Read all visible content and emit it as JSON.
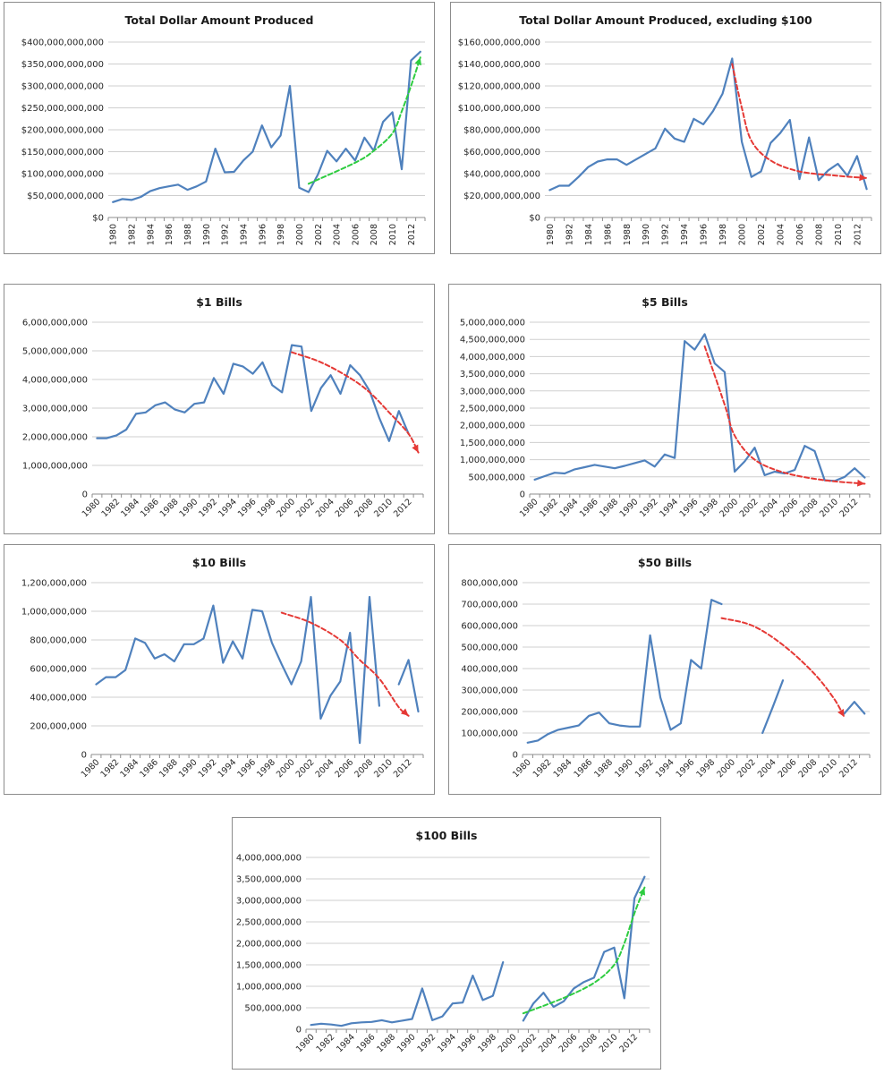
{
  "chart_data": [
    {
      "type": "line",
      "title": "Total Dollar Amount Produced",
      "x": [
        1980,
        1981,
        1982,
        1983,
        1984,
        1985,
        1986,
        1987,
        1988,
        1989,
        1990,
        1991,
        1992,
        1993,
        1994,
        1995,
        1996,
        1997,
        1998,
        1999,
        2000,
        2001,
        2002,
        2003,
        2004,
        2005,
        2006,
        2007,
        2008,
        2009,
        2010,
        2011,
        2012,
        2013
      ],
      "xticks": [
        1980,
        1982,
        1984,
        1986,
        1988,
        1990,
        1992,
        1994,
        1996,
        1998,
        2000,
        2002,
        2004,
        2006,
        2008,
        2010,
        2012
      ],
      "xtick_rotate": -90,
      "values": [
        35000000000,
        42000000000,
        40000000000,
        47000000000,
        60000000000,
        67000000000,
        71000000000,
        75000000000,
        63000000000,
        71000000000,
        82000000000,
        157000000000,
        103000000000,
        104000000000,
        130000000000,
        150000000000,
        210000000000,
        160000000000,
        187000000000,
        300000000000,
        68000000000,
        58000000000,
        98000000000,
        152000000000,
        128000000000,
        157000000000,
        130000000000,
        182000000000,
        152000000000,
        218000000000,
        240000000000,
        110000000000,
        358000000000,
        378000000000
      ],
      "ylim": [
        0,
        400000000000
      ],
      "yticks": [
        0,
        50000000000,
        100000000000,
        150000000000,
        200000000000,
        250000000000,
        300000000000,
        350000000000,
        400000000000
      ],
      "ytick_labels": [
        "$0",
        "$50,000,000,000",
        "$100,000,000,000",
        "$150,000,000,000",
        "$200,000,000,000",
        "$250,000,000,000",
        "$300,000,000,000",
        "$350,000,000,000",
        "$400,000,000,000"
      ],
      "grid": true,
      "trend": {
        "color": "#2ecc40",
        "points": [
          [
            2001,
            77000000000
          ],
          [
            2006,
            125000000000
          ],
          [
            2008,
            152000000000
          ],
          [
            2010,
            192000000000
          ],
          [
            2011,
            242000000000
          ],
          [
            2012,
            300000000000
          ],
          [
            2013,
            365000000000
          ]
        ]
      }
    },
    {
      "type": "line",
      "title": "Total Dollar Amount Produced, excluding $100",
      "x": [
        1980,
        1981,
        1982,
        1983,
        1984,
        1985,
        1986,
        1987,
        1988,
        1989,
        1990,
        1991,
        1992,
        1993,
        1994,
        1995,
        1996,
        1997,
        1998,
        1999,
        2000,
        2001,
        2002,
        2003,
        2004,
        2005,
        2006,
        2007,
        2008,
        2009,
        2010,
        2011,
        2012,
        2013
      ],
      "xticks": [
        1980,
        1982,
        1984,
        1986,
        1988,
        1990,
        1992,
        1994,
        1996,
        1998,
        2000,
        2002,
        2004,
        2006,
        2008,
        2010,
        2012
      ],
      "xtick_rotate": -90,
      "values": [
        25000000000,
        29000000000,
        29000000000,
        37000000000,
        46000000000,
        51000000000,
        53000000000,
        53000000000,
        48000000000,
        53000000000,
        58000000000,
        63000000000,
        81000000000,
        72000000000,
        69000000000,
        90000000000,
        85000000000,
        97000000000,
        113000000000,
        145000000000,
        69000000000,
        37000000000,
        42000000000,
        68000000000,
        77000000000,
        89000000000,
        35000000000,
        73000000000,
        34000000000,
        43000000000,
        49000000000,
        38000000000,
        56000000000,
        26000000000
      ],
      "ylim": [
        0,
        160000000000
      ],
      "yticks": [
        0,
        20000000000,
        40000000000,
        60000000000,
        80000000000,
        100000000000,
        120000000000,
        140000000000,
        160000000000
      ],
      "ytick_labels": [
        "$0",
        "$20,000,000,000",
        "$40,000,000,000",
        "$60,000,000,000",
        "$80,000,000,000",
        "$100,000,000,000",
        "$120,000,000,000",
        "$140,000,000,000",
        "$160,000,000,000"
      ],
      "grid": true,
      "trend": {
        "color": "#e53935",
        "points": [
          [
            1999,
            140000000000
          ],
          [
            2000,
            100000000000
          ],
          [
            2001,
            70000000000
          ],
          [
            2003,
            52000000000
          ],
          [
            2006,
            42000000000
          ],
          [
            2010,
            38000000000
          ],
          [
            2013,
            36000000000
          ]
        ]
      }
    },
    {
      "type": "line",
      "title": "$1 Bills",
      "x": [
        1980,
        1981,
        1982,
        1983,
        1984,
        1985,
        1986,
        1987,
        1988,
        1989,
        1990,
        1991,
        1992,
        1993,
        1994,
        1995,
        1996,
        1997,
        1998,
        1999,
        2000,
        2001,
        2002,
        2003,
        2004,
        2005,
        2006,
        2007,
        2008,
        2009,
        2010,
        2011,
        2012,
        2013
      ],
      "xticks": [
        1980,
        1982,
        1984,
        1986,
        1988,
        1990,
        1992,
        1994,
        1996,
        1998,
        2000,
        2002,
        2004,
        2006,
        2008,
        2010,
        2012
      ],
      "xtick_rotate": -45,
      "values": [
        1950000000,
        1950000000,
        2050000000,
        2250000000,
        2800000000,
        2850000000,
        3100000000,
        3200000000,
        2950000000,
        2850000000,
        3150000000,
        3200000000,
        4050000000,
        3500000000,
        4550000000,
        4450000000,
        4200000000,
        4600000000,
        3800000000,
        3550000000,
        5200000000,
        5150000000,
        2900000000,
        3700000000,
        4150000000,
        3500000000,
        4500000000,
        4150000000,
        3600000000,
        2650000000,
        1850000000,
        2900000000,
        2100000000,
        null
      ],
      "ylim": [
        0,
        6000000000
      ],
      "yticks": [
        0,
        1000000000,
        2000000000,
        3000000000,
        4000000000,
        5000000000,
        6000000000
      ],
      "ytick_labels": [
        "0",
        "1,000,000,000",
        "2,000,000,000",
        "3,000,000,000",
        "4,000,000,000",
        "5,000,000,000",
        "6,000,000,000"
      ],
      "grid": true,
      "trend": {
        "color": "#e53935",
        "points": [
          [
            2000,
            4950000000
          ],
          [
            2003,
            4600000000
          ],
          [
            2006,
            4050000000
          ],
          [
            2008,
            3550000000
          ],
          [
            2010,
            2850000000
          ],
          [
            2012,
            2100000000
          ],
          [
            2013,
            1450000000
          ]
        ]
      }
    },
    {
      "type": "line",
      "title": "$5 Bills",
      "x": [
        1980,
        1981,
        1982,
        1983,
        1984,
        1985,
        1986,
        1987,
        1988,
        1989,
        1990,
        1991,
        1992,
        1993,
        1994,
        1995,
        1996,
        1997,
        1998,
        1999,
        2000,
        2001,
        2002,
        2003,
        2004,
        2005,
        2006,
        2007,
        2008,
        2009,
        2010,
        2011,
        2012,
        2013
      ],
      "xticks": [
        1980,
        1982,
        1984,
        1986,
        1988,
        1990,
        1992,
        1994,
        1996,
        1998,
        2000,
        2002,
        2004,
        2006,
        2008,
        2010,
        2012
      ],
      "xtick_rotate": -45,
      "values": [
        420000000,
        520000000,
        620000000,
        600000000,
        720000000,
        780000000,
        850000000,
        800000000,
        750000000,
        820000000,
        900000000,
        980000000,
        800000000,
        1150000000,
        1050000000,
        4450000000,
        4200000000,
        4650000000,
        3800000000,
        3550000000,
        650000000,
        950000000,
        1350000000,
        550000000,
        650000000,
        600000000,
        700000000,
        1400000000,
        1250000000,
        400000000,
        380000000,
        500000000,
        750000000,
        480000000
      ],
      "ylim": [
        0,
        5000000000
      ],
      "yticks": [
        0,
        500000000,
        1000000000,
        1500000000,
        2000000000,
        2500000000,
        3000000000,
        3500000000,
        4000000000,
        4500000000,
        5000000000
      ],
      "ytick_labels": [
        "0",
        "500,000,000",
        "1,000,000,000",
        "1,500,000,000",
        "2,000,000,000",
        "2,500,000,000",
        "3,000,000,000",
        "3,500,000,000",
        "4,000,000,000",
        "4,500,000,000",
        "5,000,000,000"
      ],
      "grid": true,
      "trend": {
        "color": "#e53935",
        "points": [
          [
            1997,
            4300000000
          ],
          [
            1999,
            2600000000
          ],
          [
            2000,
            1700000000
          ],
          [
            2002,
            1000000000
          ],
          [
            2005,
            620000000
          ],
          [
            2009,
            400000000
          ],
          [
            2013,
            300000000
          ]
        ]
      }
    },
    {
      "type": "line",
      "title": "$10 Bills",
      "x": [
        1980,
        1981,
        1982,
        1983,
        1984,
        1985,
        1986,
        1987,
        1988,
        1989,
        1990,
        1991,
        1992,
        1993,
        1994,
        1995,
        1996,
        1997,
        1998,
        1999,
        2000,
        2001,
        2002,
        2003,
        2004,
        2005,
        2006,
        2007,
        2008,
        2009,
        2010,
        2011,
        2012,
        2013
      ],
      "xticks": [
        1980,
        1982,
        1984,
        1986,
        1988,
        1990,
        1992,
        1994,
        1996,
        1998,
        2000,
        2002,
        2004,
        2006,
        2008,
        2010,
        2012
      ],
      "xtick_rotate": -45,
      "values": [
        490000000,
        540000000,
        540000000,
        590000000,
        810000000,
        780000000,
        670000000,
        700000000,
        650000000,
        770000000,
        770000000,
        810000000,
        1040000000,
        640000000,
        790000000,
        670000000,
        1010000000,
        1000000000,
        780000000,
        630000000,
        490000000,
        650000000,
        1100000000,
        250000000,
        410000000,
        510000000,
        850000000,
        80000000,
        1100000000,
        340000000,
        null,
        490000000,
        660000000,
        300000000
      ],
      "ylim": [
        0,
        1200000000
      ],
      "yticks": [
        0,
        200000000,
        400000000,
        600000000,
        800000000,
        1000000000,
        1200000000
      ],
      "ytick_labels": [
        "0",
        "200,000,000",
        "400,000,000",
        "600,000,000",
        "800,000,000",
        "1,000,000,000",
        "1,200,000,000"
      ],
      "grid": true,
      "trend": {
        "color": "#e53935",
        "points": [
          [
            1999,
            990000000
          ],
          [
            2002,
            920000000
          ],
          [
            2005,
            800000000
          ],
          [
            2007,
            660000000
          ],
          [
            2009,
            530000000
          ],
          [
            2011,
            330000000
          ],
          [
            2012,
            270000000
          ]
        ]
      }
    },
    {
      "type": "line",
      "title": "$50 Bills",
      "x": [
        1980,
        1981,
        1982,
        1983,
        1984,
        1985,
        1986,
        1987,
        1988,
        1989,
        1990,
        1991,
        1992,
        1993,
        1994,
        1995,
        1996,
        1997,
        1998,
        1999,
        2000,
        2001,
        2002,
        2003,
        2004,
        2005,
        2006,
        2007,
        2008,
        2009,
        2010,
        2011,
        2012,
        2013
      ],
      "xticks": [
        1980,
        1982,
        1984,
        1986,
        1988,
        1990,
        1992,
        1994,
        1996,
        1998,
        2000,
        2002,
        2004,
        2006,
        2008,
        2010,
        2012
      ],
      "xtick_rotate": -45,
      "values": [
        55000000,
        65000000,
        95000000,
        115000000,
        125000000,
        135000000,
        180000000,
        195000000,
        145000000,
        135000000,
        130000000,
        130000000,
        555000000,
        265000000,
        115000000,
        145000000,
        440000000,
        400000000,
        720000000,
        700000000,
        null,
        null,
        null,
        100000000,
        220000000,
        345000000,
        null,
        null,
        null,
        null,
        null,
        190000000,
        245000000,
        190000000
      ],
      "ylim": [
        0,
        800000000
      ],
      "yticks": [
        0,
        100000000,
        200000000,
        300000000,
        400000000,
        500000000,
        600000000,
        700000000,
        800000000
      ],
      "ytick_labels": [
        "0",
        "100,000,000",
        "200,000,000",
        "300,000,000",
        "400,000,000",
        "500,000,000",
        "600,000,000",
        "700,000,000",
        "800,000,000"
      ],
      "grid": true,
      "trend": {
        "color": "#e53935",
        "points": [
          [
            1999,
            635000000
          ],
          [
            2002,
            600000000
          ],
          [
            2005,
            510000000
          ],
          [
            2008,
            380000000
          ],
          [
            2010,
            260000000
          ],
          [
            2011,
            175000000
          ]
        ]
      }
    },
    {
      "type": "line",
      "title": "$100 Bills",
      "x": [
        1980,
        1981,
        1982,
        1983,
        1984,
        1985,
        1986,
        1987,
        1988,
        1989,
        1990,
        1991,
        1992,
        1993,
        1994,
        1995,
        1996,
        1997,
        1998,
        1999,
        2000,
        2001,
        2002,
        2003,
        2004,
        2005,
        2006,
        2007,
        2008,
        2009,
        2010,
        2011,
        2012,
        2013
      ],
      "xticks": [
        1980,
        1982,
        1984,
        1986,
        1988,
        1990,
        1992,
        1994,
        1996,
        1998,
        2000,
        2002,
        2004,
        2006,
        2008,
        2010,
        2012
      ],
      "xtick_rotate": -45,
      "values": [
        100000000,
        130000000,
        110000000,
        80000000,
        140000000,
        160000000,
        170000000,
        210000000,
        160000000,
        200000000,
        240000000,
        950000000,
        210000000,
        300000000,
        600000000,
        620000000,
        1250000000,
        680000000,
        780000000,
        1560000000,
        null,
        200000000,
        600000000,
        850000000,
        520000000,
        650000000,
        950000000,
        1100000000,
        1200000000,
        1800000000,
        1900000000,
        720000000,
        3050000000,
        3550000000
      ],
      "ylim": [
        0,
        4000000000
      ],
      "yticks": [
        0,
        500000000,
        1000000000,
        1500000000,
        2000000000,
        2500000000,
        3000000000,
        3500000000,
        4000000000
      ],
      "ytick_labels": [
        "0",
        "500,000,000",
        "1,000,000,000",
        "1,500,000,000",
        "2,000,000,000",
        "2,500,000,000",
        "3,000,000,000",
        "3,500,000,000",
        "4,000,000,000"
      ],
      "grid": true,
      "trend": {
        "color": "#2ecc40",
        "points": [
          [
            2001,
            370000000
          ],
          [
            2005,
            730000000
          ],
          [
            2008,
            1080000000
          ],
          [
            2010,
            1500000000
          ],
          [
            2011,
            2000000000
          ],
          [
            2012,
            2700000000
          ],
          [
            2013,
            3300000000
          ]
        ]
      }
    }
  ]
}
